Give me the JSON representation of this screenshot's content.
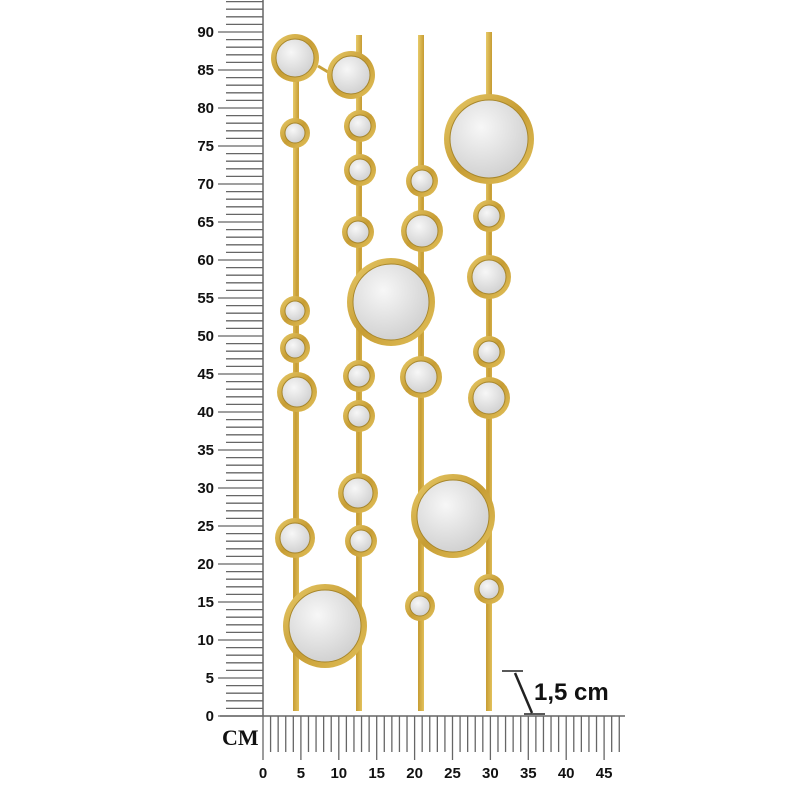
{
  "ruler": {
    "unit_label": "CM",
    "vertical_labels": [
      "0",
      "5",
      "10",
      "15",
      "20",
      "25",
      "30",
      "35",
      "40",
      "45",
      "50",
      "55",
      "60",
      "65",
      "70",
      "75",
      "80",
      "85",
      "90"
    ],
    "horizontal_labels": [
      "0",
      "5",
      "10",
      "15",
      "20",
      "25",
      "30",
      "35",
      "40",
      "45"
    ]
  },
  "annotation": {
    "thickness_label": "1,5 cm"
  },
  "colors": {
    "gold": "#c9a23a",
    "gold_light": "#e6c766",
    "mirror": "#e4e4e4",
    "ruler": "#666666"
  }
}
